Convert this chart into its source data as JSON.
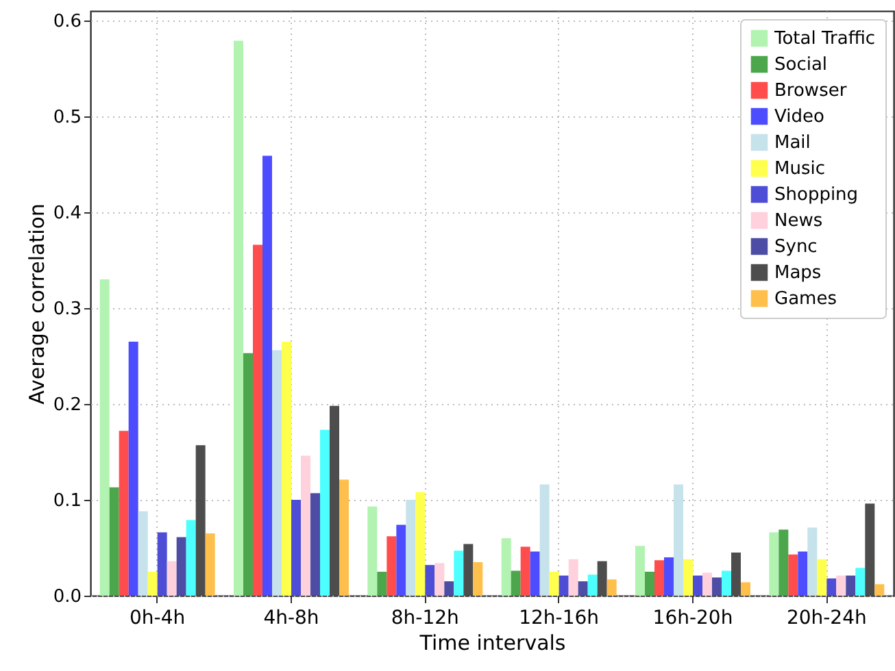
{
  "chart_data": {
    "type": "bar",
    "xlabel": "Time intervals",
    "ylabel": "Average correlation",
    "categories": [
      "0h-4h",
      "4h-8h",
      "8h-12h",
      "12h-16h",
      "16h-20h",
      "20h-24h"
    ],
    "ylim": [
      0,
      0.61
    ],
    "yticks": [
      {
        "value": 0,
        "label": "0.0"
      },
      {
        "value": 0.1,
        "label": "0.1"
      },
      {
        "value": 0.2,
        "label": "0.2"
      },
      {
        "value": 0.3,
        "label": "0.3"
      },
      {
        "value": 0.4,
        "label": "0.4"
      },
      {
        "value": 0.5,
        "label": "0.5"
      },
      {
        "value": 0.6,
        "label": "0.6"
      }
    ],
    "grid": true,
    "legend": "top right",
    "series": [
      {
        "name": "Total Traffic",
        "color": "#b2f3b2",
        "values": [
          0.33,
          0.579,
          0.093,
          0.06,
          0.052,
          0.066
        ]
      },
      {
        "name": "Social",
        "color": "#4ca64c",
        "values": [
          0.113,
          0.253,
          0.025,
          0.026,
          0.025,
          0.069
        ]
      },
      {
        "name": "Browser",
        "color": "#ff4d4d",
        "values": [
          0.172,
          0.366,
          0.062,
          0.051,
          0.037,
          0.043
        ]
      },
      {
        "name": "Video",
        "color": "#4d4dff",
        "values": [
          0.265,
          0.459,
          0.074,
          0.046,
          0.04,
          0.046
        ]
      },
      {
        "name": "Mail",
        "color": "#c6e2eb",
        "values": [
          0.088,
          0.256,
          0.1,
          0.116,
          0.116,
          0.071
        ]
      },
      {
        "name": "Music",
        "color": "#ffff4d",
        "values": [
          0.025,
          0.265,
          0.108,
          0.025,
          0.038,
          0.038
        ]
      },
      {
        "name": "Shopping",
        "color": "#4d4dd5",
        "values": [
          0.066,
          0.1,
          0.032,
          0.021,
          0.021,
          0.018
        ]
      },
      {
        "name": "News",
        "color": "#ffd1dc",
        "values": [
          0.036,
          0.146,
          0.034,
          0.038,
          0.024,
          0.021
        ]
      },
      {
        "name": "Sync",
        "color": "#4d4da6",
        "values": [
          0.061,
          0.107,
          0.015,
          0.015,
          0.019,
          0.021
        ]
      },
      {
        "color": "#4dffff",
        "values": [
          0.079,
          0.173,
          0.047,
          0.022,
          0.026,
          0.029
        ]
      },
      {
        "name": "Maps",
        "color": "#4d4d4d",
        "values": [
          0.157,
          0.198,
          0.054,
          0.036,
          0.045,
          0.096
        ]
      },
      {
        "name": "Games",
        "color": "#ffbf4d",
        "values": [
          0.065,
          0.121,
          0.035,
          0.017,
          0.014,
          0.012
        ]
      }
    ]
  }
}
